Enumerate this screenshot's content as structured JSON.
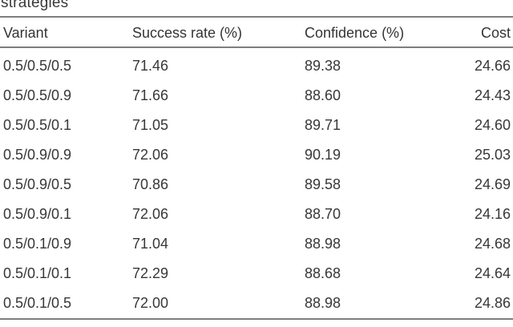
{
  "caption": "strategies",
  "colors": {
    "rule": "#7e7e7e",
    "text": "#373737",
    "background": "#ffffff"
  },
  "table": {
    "columns": [
      "Variant",
      "Success rate (%)",
      "Confidence (%)",
      "Cost"
    ],
    "rows": [
      {
        "variant": "0.5/0.5/0.5",
        "success_rate": "71.46",
        "confidence": "89.38",
        "cost": "24.66"
      },
      {
        "variant": "0.5/0.5/0.9",
        "success_rate": "71.66",
        "confidence": "88.60",
        "cost": "24.43"
      },
      {
        "variant": "0.5/0.5/0.1",
        "success_rate": "71.05",
        "confidence": "89.71",
        "cost": "24.60"
      },
      {
        "variant": "0.5/0.9/0.9",
        "success_rate": "72.06",
        "confidence": "90.19",
        "cost": "25.03"
      },
      {
        "variant": "0.5/0.9/0.5",
        "success_rate": "70.86",
        "confidence": "89.58",
        "cost": "24.69"
      },
      {
        "variant": "0.5/0.9/0.1",
        "success_rate": "72.06",
        "confidence": "88.70",
        "cost": "24.16"
      },
      {
        "variant": "0.5/0.1/0.9",
        "success_rate": "71.04",
        "confidence": "88.98",
        "cost": "24.68"
      },
      {
        "variant": "0.5/0.1/0.1",
        "success_rate": "72.29",
        "confidence": "88.68",
        "cost": "24.64"
      },
      {
        "variant": "0.5/0.1/0.5",
        "success_rate": "72.00",
        "confidence": "88.98",
        "cost": "24.86"
      }
    ]
  }
}
